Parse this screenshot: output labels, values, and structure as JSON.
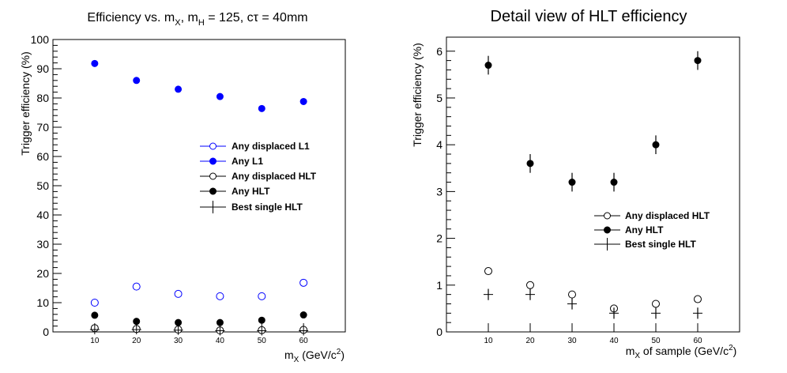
{
  "chart_data": [
    {
      "type": "scatter",
      "title": "Efficiency vs. mX, mH = 125, cτ = 40mm",
      "title_parts": [
        "Efficiency vs. m",
        "X",
        ", m",
        "H",
        " = 125, cτ = 40mm"
      ],
      "xlabel_parts": [
        "m",
        "X",
        " (GeV/c",
        "2",
        ")"
      ],
      "ylabel": "Trigger efficiency (%)",
      "x_categories": [
        "10",
        "20",
        "30",
        "40",
        "50",
        "60"
      ],
      "ylim": [
        0,
        100
      ],
      "yticks": [
        "0",
        "10",
        "20",
        "30",
        "40",
        "50",
        "60",
        "70",
        "80",
        "90",
        "100"
      ],
      "legend_position": "center-right",
      "series": [
        {
          "name": "Any displaced L1",
          "marker": "open-circle",
          "color": "#0000ff",
          "x": [
            10,
            20,
            30,
            40,
            50,
            60
          ],
          "y": [
            10.0,
            15.5,
            13.0,
            12.2,
            12.2,
            16.8
          ]
        },
        {
          "name": "Any L1",
          "marker": "filled-circle",
          "color": "#0000ff",
          "x": [
            10,
            20,
            30,
            40,
            50,
            60
          ],
          "y": [
            91.8,
            86.0,
            83.0,
            80.5,
            76.4,
            78.8
          ]
        },
        {
          "name": "Any displaced HLT",
          "marker": "open-circle",
          "color": "#000000",
          "x": [
            10,
            20,
            30,
            40,
            50,
            60
          ],
          "y": [
            1.3,
            1.0,
            0.8,
            0.5,
            0.6,
            0.7
          ]
        },
        {
          "name": "Any HLT",
          "marker": "filled-circle",
          "color": "#000000",
          "x": [
            10,
            20,
            30,
            40,
            50,
            60
          ],
          "y": [
            5.7,
            3.6,
            3.2,
            3.2,
            4.0,
            5.8
          ]
        },
        {
          "name": "Best single HLT",
          "marker": "cross",
          "color": "#000000",
          "x": [
            10,
            20,
            30,
            40,
            50,
            60
          ],
          "y": [
            0.8,
            0.8,
            0.6,
            0.4,
            0.4,
            0.4
          ]
        }
      ]
    },
    {
      "type": "scatter",
      "title": "Detail view of HLT efficiency",
      "xlabel_parts": [
        "m",
        "X",
        " of sample (GeV/c",
        "2",
        ")"
      ],
      "ylabel": "Trigger efficiency (%)",
      "x_categories": [
        "10",
        "20",
        "30",
        "40",
        "50",
        "60"
      ],
      "ylim": [
        0,
        6.3
      ],
      "yticks": [
        "0",
        "1",
        "2",
        "3",
        "4",
        "5",
        "6"
      ],
      "legend_position": "center-right",
      "series": [
        {
          "name": "Any displaced HLT",
          "marker": "open-circle",
          "color": "#000000",
          "x": [
            10,
            20,
            30,
            40,
            50,
            60
          ],
          "y": [
            1.3,
            1.0,
            0.8,
            0.5,
            0.6,
            0.7
          ],
          "err": [
            0.05,
            0.05,
            0.05,
            0.05,
            0.05,
            0.05
          ]
        },
        {
          "name": "Any HLT",
          "marker": "filled-circle",
          "color": "#000000",
          "x": [
            10,
            20,
            30,
            40,
            50,
            60
          ],
          "y": [
            5.7,
            3.6,
            3.2,
            3.2,
            4.0,
            5.8
          ],
          "err": [
            0.2,
            0.2,
            0.2,
            0.2,
            0.2,
            0.2
          ]
        },
        {
          "name": "Best single HLT",
          "marker": "cross",
          "color": "#000000",
          "x": [
            10,
            20,
            30,
            40,
            50,
            60
          ],
          "y": [
            0.8,
            0.8,
            0.6,
            0.4,
            0.4,
            0.4
          ],
          "err": [
            0.12,
            0.12,
            0.12,
            0.12,
            0.12,
            0.12
          ]
        }
      ]
    }
  ]
}
